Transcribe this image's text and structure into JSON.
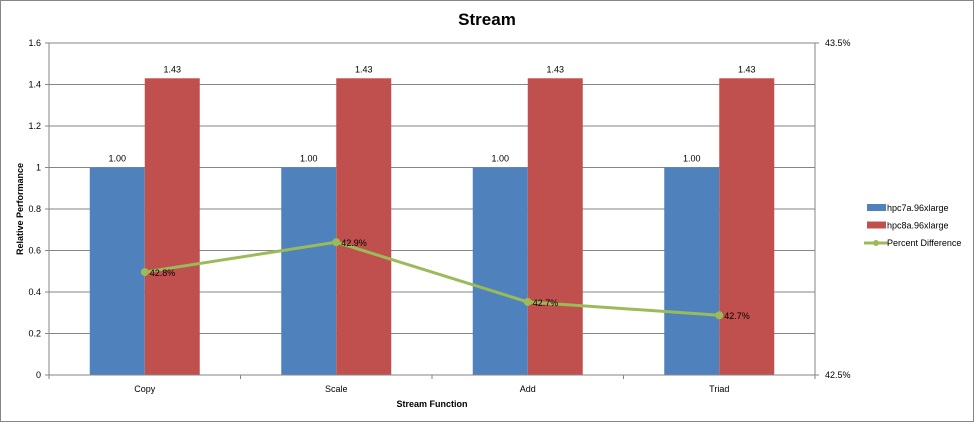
{
  "chart_data": {
    "type": "bar",
    "title": "Stream",
    "xlabel": "Stream Function",
    "ylabel": "Relative Performance",
    "categories": [
      "Copy",
      "Scale",
      "Add",
      "Triad"
    ],
    "ylim": [
      0,
      1.6
    ],
    "yticks": [
      "0",
      "0.2",
      "0.4",
      "0.6",
      "0.8",
      "1",
      "1.2",
      "1.4",
      "1.6"
    ],
    "y2lim": [
      42.5,
      43.5
    ],
    "y2ticks": [
      "42.5%",
      "43.5%"
    ],
    "grid": true,
    "legend_position": "right",
    "series": [
      {
        "name": "hpc7a.96xlarge",
        "type": "bar",
        "color": "#4F81BD",
        "values": [
          1.0,
          1.0,
          1.0,
          1.0
        ],
        "labels": [
          "1.00",
          "1.00",
          "1.00",
          "1.00"
        ]
      },
      {
        "name": "hpc8a.96xlarge",
        "type": "bar",
        "color": "#C0504D",
        "values": [
          1.43,
          1.43,
          1.43,
          1.43
        ],
        "labels": [
          "1.43",
          "1.43",
          "1.43",
          "1.43"
        ]
      },
      {
        "name": "Percent Difference",
        "type": "line",
        "axis": "secondary",
        "color": "#9BBB59",
        "values": [
          42.81,
          42.9,
          42.72,
          42.68
        ],
        "labels": [
          "42.8%",
          "42.9%",
          "42.7%",
          "42.7%"
        ]
      }
    ]
  }
}
